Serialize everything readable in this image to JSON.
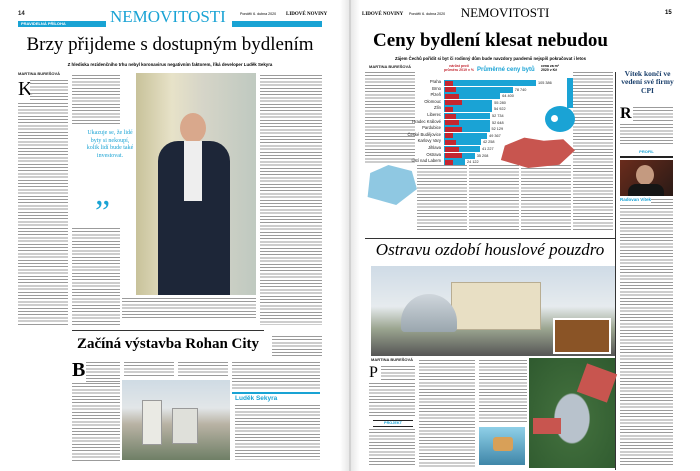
{
  "left_page": {
    "page_number": "14",
    "supplement_label": "PRAVIDELNÁ PŘÍLOHA",
    "section": "NEMOVITOSTI",
    "dateline": "Pondělí 6. dubna 2020",
    "paper": "LIDOVÉ NOVINY",
    "headline": "Brzy přijdeme s dostupným bydlením",
    "subheadline": "Z hlediska rezidenčního trhu nebyl koronavirus negativním faktorem, říká developer Luděk Sekyra",
    "byline": "MARTINA BUREŠOVÁ",
    "pull_quote": "Ukazuje se, že lidé byty si nekoupí, kolik lidí bude také investovat.",
    "quote_mark": "”",
    "second_headline": "Začíná výstavba Rohan City",
    "drop_cap": "B",
    "sidebar_title": "Luděk Sekyra",
    "accent_color": "#19a3d4"
  },
  "right_page": {
    "paper": "LIDOVÉ NOVINY",
    "dateline": "Pondělí 6. dubna 2020",
    "section": "NEMOVITOSTI",
    "page_number": "15",
    "headline": "Ceny bydlení klesat nebudou",
    "subheadline": "Zájem Čechů pořídit si byt či rodinný dům bude navzdory pandemii nejspíš pokračovat i letos",
    "byline": "MARTINA BUREŠOVÁ",
    "sidebar_headline": "Vítek končí ve vedení své firmy CPI",
    "sidebar_drop_cap": "R",
    "profile_label": "PROFIL",
    "profile_name": "Radovan Vítek",
    "second_headline": "Ostravu ozdobí houslové pouzdro",
    "project_label": "PROJEKT",
    "drop_cap": "P"
  },
  "chart_data": {
    "type": "bar",
    "title": "Průměrné ceny bytů",
    "left_label": "nárůst proti průměru 2019 v %",
    "right_label": "cena za m² 2020 v Kč",
    "categories": [
      "Praha",
      "Brno",
      "Plzeň",
      "Olomouc",
      "Zlín",
      "Liberec",
      "Hradec Králové",
      "Pardubice",
      "České Budějovice",
      "Karlovy Vary",
      "Jihlava",
      "Ostrava",
      "Ústí nad Labem"
    ],
    "values": [
      105386,
      78740,
      64400,
      55280,
      54922,
      52734,
      52648,
      52129,
      49367,
      42258,
      41227,
      35208,
      24122
    ],
    "value_labels": [
      "105 386",
      "78 740",
      "64 400",
      "55 280",
      "54 922",
      "52 734",
      "52 648",
      "52 129",
      "49 367",
      "42 258",
      "41 227",
      "35 208",
      "24 122"
    ],
    "series_colors": {
      "price": "#1aa3d5",
      "growth": "#c32630"
    }
  }
}
